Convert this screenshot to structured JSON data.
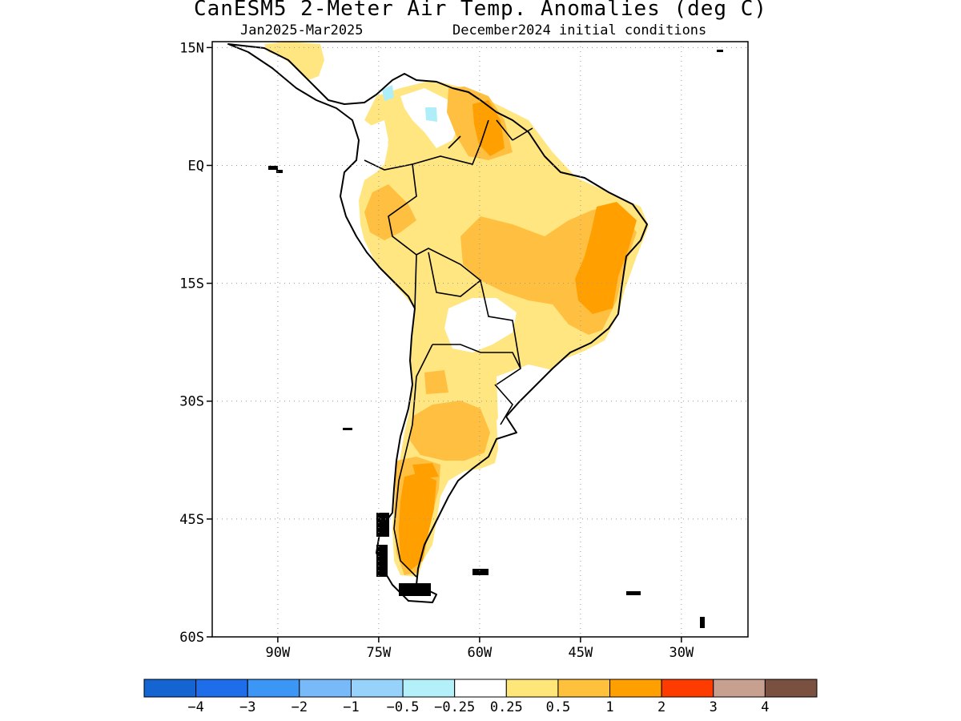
{
  "title": "CanESM5 2-Meter Air Temp. Anomalies (deg C)",
  "subtitle_left": "Jan2025-Mar2025",
  "subtitle_right": "December2024 initial conditions",
  "map": {
    "lat_ticks": [
      {
        "value": 15,
        "label": "15N"
      },
      {
        "value": 0,
        "label": "EQ"
      },
      {
        "value": -15,
        "label": "15S"
      },
      {
        "value": -30,
        "label": "30S"
      },
      {
        "value": -45,
        "label": "45S"
      },
      {
        "value": -60,
        "label": "60S"
      }
    ],
    "lon_ticks": [
      {
        "value": -90,
        "label": "90W"
      },
      {
        "value": -75,
        "label": "75W"
      },
      {
        "value": -60,
        "label": "60W"
      },
      {
        "value": -45,
        "label": "45W"
      },
      {
        "value": -30,
        "label": "30W"
      }
    ],
    "grid": "dotted",
    "fill_colors": {
      "0.25-0.5": "#ffe680",
      "0.5-1": "#ffbf40",
      "1-2": "#ffa000",
      "-0.5--0.25": "#aeeef8"
    }
  },
  "colorbar": {
    "colors": [
      "#1464d2",
      "#1e6eeb",
      "#3c96f5",
      "#78b9fa",
      "#96d2fa",
      "#b4f0fa",
      "#ffffff",
      "#ffe678",
      "#ffc03c",
      "#ffa000",
      "#ff3c00",
      "#c8a090",
      "#7a5040"
    ],
    "labels": [
      "−4",
      "−3",
      "−2",
      "−1",
      "−0.5",
      "−0.25",
      "0.25",
      "0.5",
      "1",
      "2",
      "3",
      "4"
    ]
  }
}
